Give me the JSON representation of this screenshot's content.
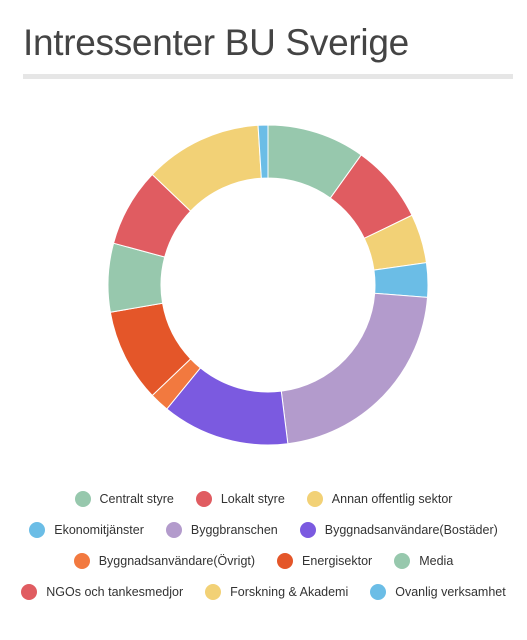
{
  "page": {
    "title": "Intressenter BU Sverige"
  },
  "chart_data": {
    "type": "pie",
    "variant": "donut",
    "categories": [
      "Centralt styre",
      "Lokalt styre",
      "Annan offentlig sektor",
      "Ekonomitjänster",
      "Byggbranschen",
      "Byggnadsanvändare(Bostäder)",
      "Byggnadsanvändare(Övrigt)",
      "Energisektor",
      "Media",
      "NGOs och tankesmedjor",
      "Forskning & Akademi",
      "Ovanlig verksamhet"
    ],
    "values": [
      10,
      8,
      5,
      3.5,
      22,
      13,
      2,
      9.5,
      7,
      8,
      12,
      1
    ],
    "colors": [
      "#97c8ad",
      "#e05c61",
      "#f2d176",
      "#6bbde6",
      "#b39bcc",
      "#7b5ae0",
      "#f2793f",
      "#e45629",
      "#97c8ad",
      "#e05c61",
      "#f2d176",
      "#6bbde6"
    ],
    "legend_position": "bottom",
    "legend_rows": [
      [
        0,
        1,
        2
      ],
      [
        3,
        4,
        5
      ],
      [
        6,
        7,
        8
      ],
      [
        9,
        10,
        11
      ]
    ]
  }
}
